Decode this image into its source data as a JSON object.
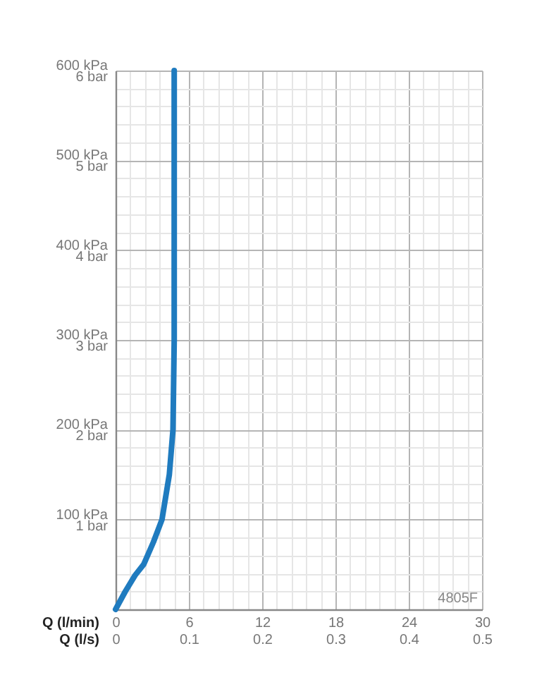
{
  "chart_data": {
    "type": "line",
    "xlabel": "Q (l/min)",
    "x2label": "Q (l/s)",
    "annotations": [
      "4805F"
    ],
    "x": [
      0,
      0.8,
      1.6,
      2.3,
      3.1,
      3.8,
      4.4,
      4.7,
      4.8,
      4.8
    ],
    "series": [
      {
        "color": "#1f7bbf",
        "values": [
          0,
          20,
          38,
          50,
          75,
          100,
          150,
          200,
          300,
          600
        ]
      }
    ],
    "xlim": [
      0,
      30
    ],
    "ylim": [
      0,
      600
    ],
    "x2lim": [
      0,
      0.5
    ],
    "y2lim": [
      0,
      6
    ],
    "grid": true,
    "line_style": "solid",
    "marker": "none",
    "xticks": [
      0,
      {
        "value": 1.2,
        "label": null
      },
      {
        "value": 2.4,
        "label": null
      },
      {
        "value": 3.6,
        "label": null
      },
      {
        "value": 4.8,
        "label": null
      },
      6,
      {
        "value": 7.2,
        "label": null
      },
      {
        "value": 8.4,
        "label": null
      },
      {
        "value": 9.6,
        "label": null
      },
      {
        "value": 10.8,
        "label": null
      },
      12,
      {
        "value": 13.2,
        "label": null
      },
      {
        "value": 14.4,
        "label": null
      },
      {
        "value": 15.6,
        "label": null
      },
      {
        "value": 16.8,
        "label": null
      },
      18,
      {
        "value": 19.2,
        "label": null
      },
      {
        "value": 20.4,
        "label": null
      },
      {
        "value": 21.6,
        "label": null
      },
      {
        "value": 22.8,
        "label": null
      },
      24,
      {
        "value": 25.2,
        "label": null
      },
      {
        "value": 26.4,
        "label": null
      },
      {
        "value": 27.6,
        "label": null
      },
      {
        "value": 28.8,
        "label": null
      },
      30
    ],
    "x2ticks": [
      0,
      0.1,
      0.2,
      0.3,
      0.4,
      0.5
    ],
    "yticks": [
      {
        "value": 20,
        "label": null
      },
      {
        "value": 40,
        "label": null
      },
      {
        "value": 60,
        "label": null
      },
      {
        "value": 80,
        "label": null
      },
      {
        "value": 100,
        "label": "100 kPa"
      },
      {
        "value": 120,
        "label": null
      },
      {
        "value": 140,
        "label": null
      },
      {
        "value": 160,
        "label": null
      },
      {
        "value": 180,
        "label": null
      },
      {
        "value": 200,
        "label": "200 kPa"
      },
      {
        "value": 220,
        "label": null
      },
      {
        "value": 240,
        "label": null
      },
      {
        "value": 260,
        "label": null
      },
      {
        "value": 280,
        "label": null
      },
      {
        "value": 300,
        "label": "300 kPa"
      },
      {
        "value": 320,
        "label": null
      },
      {
        "value": 340,
        "label": null
      },
      {
        "value": 360,
        "label": null
      },
      {
        "value": 380,
        "label": null
      },
      {
        "value": 400,
        "label": "400 kPa"
      },
      {
        "value": 420,
        "label": null
      },
      {
        "value": 440,
        "label": null
      },
      {
        "value": 460,
        "label": null
      },
      {
        "value": 480,
        "label": null
      },
      {
        "value": 500,
        "label": "500 kPa"
      },
      {
        "value": 520,
        "label": null
      },
      {
        "value": 540,
        "label": null
      },
      {
        "value": 560,
        "label": null
      },
      {
        "value": 580,
        "label": null
      },
      {
        "value": 600,
        "label": "600 kPa"
      }
    ],
    "y2ticks": [
      {
        "value": 1,
        "label": "1 bar"
      },
      {
        "value": 2,
        "label": "2 bar"
      },
      {
        "value": 3,
        "label": "3 bar"
      },
      {
        "value": 4,
        "label": "4 bar"
      },
      {
        "value": 5,
        "label": "5 bar"
      },
      {
        "value": 6,
        "label": "6 bar"
      }
    ]
  }
}
